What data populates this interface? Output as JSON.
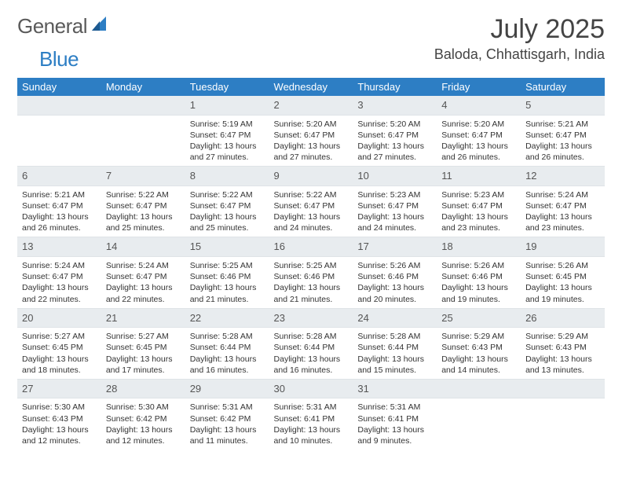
{
  "logo": {
    "text1": "General",
    "text2": "Blue",
    "color1": "#5a5a5a",
    "color2": "#2d7ec4"
  },
  "title": "July 2025",
  "location": "Baloda, Chhattisgarh, India",
  "header_bg": "#2d7ec4",
  "header_text_color": "#ffffff",
  "daynum_bg": "#e8ecef",
  "body_bg": "#ffffff",
  "text_color": "#333333",
  "day_headers": [
    "Sunday",
    "Monday",
    "Tuesday",
    "Wednesday",
    "Thursday",
    "Friday",
    "Saturday"
  ],
  "label_sunrise": "Sunrise:",
  "label_sunset": "Sunset:",
  "label_daylight": "Daylight:",
  "weeks": [
    [
      null,
      null,
      {
        "n": "1",
        "sr": "5:19 AM",
        "ss": "6:47 PM",
        "dl": "13 hours and 27 minutes."
      },
      {
        "n": "2",
        "sr": "5:20 AM",
        "ss": "6:47 PM",
        "dl": "13 hours and 27 minutes."
      },
      {
        "n": "3",
        "sr": "5:20 AM",
        "ss": "6:47 PM",
        "dl": "13 hours and 27 minutes."
      },
      {
        "n": "4",
        "sr": "5:20 AM",
        "ss": "6:47 PM",
        "dl": "13 hours and 26 minutes."
      },
      {
        "n": "5",
        "sr": "5:21 AM",
        "ss": "6:47 PM",
        "dl": "13 hours and 26 minutes."
      }
    ],
    [
      {
        "n": "6",
        "sr": "5:21 AM",
        "ss": "6:47 PM",
        "dl": "13 hours and 26 minutes."
      },
      {
        "n": "7",
        "sr": "5:22 AM",
        "ss": "6:47 PM",
        "dl": "13 hours and 25 minutes."
      },
      {
        "n": "8",
        "sr": "5:22 AM",
        "ss": "6:47 PM",
        "dl": "13 hours and 25 minutes."
      },
      {
        "n": "9",
        "sr": "5:22 AM",
        "ss": "6:47 PM",
        "dl": "13 hours and 24 minutes."
      },
      {
        "n": "10",
        "sr": "5:23 AM",
        "ss": "6:47 PM",
        "dl": "13 hours and 24 minutes."
      },
      {
        "n": "11",
        "sr": "5:23 AM",
        "ss": "6:47 PM",
        "dl": "13 hours and 23 minutes."
      },
      {
        "n": "12",
        "sr": "5:24 AM",
        "ss": "6:47 PM",
        "dl": "13 hours and 23 minutes."
      }
    ],
    [
      {
        "n": "13",
        "sr": "5:24 AM",
        "ss": "6:47 PM",
        "dl": "13 hours and 22 minutes."
      },
      {
        "n": "14",
        "sr": "5:24 AM",
        "ss": "6:47 PM",
        "dl": "13 hours and 22 minutes."
      },
      {
        "n": "15",
        "sr": "5:25 AM",
        "ss": "6:46 PM",
        "dl": "13 hours and 21 minutes."
      },
      {
        "n": "16",
        "sr": "5:25 AM",
        "ss": "6:46 PM",
        "dl": "13 hours and 21 minutes."
      },
      {
        "n": "17",
        "sr": "5:26 AM",
        "ss": "6:46 PM",
        "dl": "13 hours and 20 minutes."
      },
      {
        "n": "18",
        "sr": "5:26 AM",
        "ss": "6:46 PM",
        "dl": "13 hours and 19 minutes."
      },
      {
        "n": "19",
        "sr": "5:26 AM",
        "ss": "6:45 PM",
        "dl": "13 hours and 19 minutes."
      }
    ],
    [
      {
        "n": "20",
        "sr": "5:27 AM",
        "ss": "6:45 PM",
        "dl": "13 hours and 18 minutes."
      },
      {
        "n": "21",
        "sr": "5:27 AM",
        "ss": "6:45 PM",
        "dl": "13 hours and 17 minutes."
      },
      {
        "n": "22",
        "sr": "5:28 AM",
        "ss": "6:44 PM",
        "dl": "13 hours and 16 minutes."
      },
      {
        "n": "23",
        "sr": "5:28 AM",
        "ss": "6:44 PM",
        "dl": "13 hours and 16 minutes."
      },
      {
        "n": "24",
        "sr": "5:28 AM",
        "ss": "6:44 PM",
        "dl": "13 hours and 15 minutes."
      },
      {
        "n": "25",
        "sr": "5:29 AM",
        "ss": "6:43 PM",
        "dl": "13 hours and 14 minutes."
      },
      {
        "n": "26",
        "sr": "5:29 AM",
        "ss": "6:43 PM",
        "dl": "13 hours and 13 minutes."
      }
    ],
    [
      {
        "n": "27",
        "sr": "5:30 AM",
        "ss": "6:43 PM",
        "dl": "13 hours and 12 minutes."
      },
      {
        "n": "28",
        "sr": "5:30 AM",
        "ss": "6:42 PM",
        "dl": "13 hours and 12 minutes."
      },
      {
        "n": "29",
        "sr": "5:31 AM",
        "ss": "6:42 PM",
        "dl": "13 hours and 11 minutes."
      },
      {
        "n": "30",
        "sr": "5:31 AM",
        "ss": "6:41 PM",
        "dl": "13 hours and 10 minutes."
      },
      {
        "n": "31",
        "sr": "5:31 AM",
        "ss": "6:41 PM",
        "dl": "13 hours and 9 minutes."
      },
      null,
      null
    ]
  ]
}
